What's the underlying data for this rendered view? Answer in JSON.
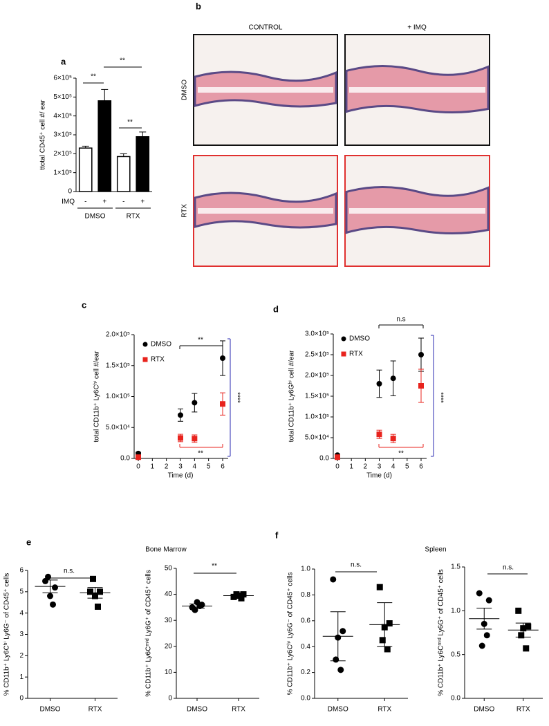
{
  "chart_data": [
    {
      "type": "bar",
      "panel": "a",
      "y_label": "ttotal CD45⁺ cell #/ ear",
      "x_label": "IMQ",
      "categories": [
        "-",
        "+",
        "-",
        "+"
      ],
      "group_labels": [
        "DMSO",
        "RTX"
      ],
      "values": [
        230000,
        480000,
        185000,
        290000
      ],
      "errors": [
        10000,
        60000,
        15000,
        25000
      ],
      "colors": [
        "#ffffff",
        "#000000",
        "#ffffff",
        "#000000"
      ],
      "ylim": [
        0,
        600000
      ],
      "yticks": [
        0,
        {
          "value": 100000,
          "label": "1×10⁵"
        },
        {
          "value": 200000,
          "label": "2×10⁵"
        },
        {
          "value": 300000,
          "label": "3×10⁵"
        },
        {
          "value": 400000,
          "label": "4×10⁵"
        },
        {
          "value": 500000,
          "label": "5×10⁵"
        },
        {
          "value": 600000,
          "label": "6×10⁵"
        }
      ],
      "annotations": [
        {
          "text": "**",
          "color": "#000000"
        },
        {
          "text": "**",
          "color": "#000000"
        },
        {
          "text": "**",
          "color": "#000000"
        }
      ]
    },
    {
      "type": "scatter",
      "panel": "c",
      "y_label": "total CD11b⁺ Ly6Cʰⁱ cell #/ear",
      "x_label": "Time (d)",
      "legend": "upper left",
      "x": [
        0,
        3,
        4,
        6
      ],
      "xlim": [
        0,
        6
      ],
      "xticks": [
        0,
        1,
        2,
        3,
        4,
        5,
        6
      ],
      "series": [
        {
          "name": "DMSO",
          "color": "#000000",
          "marker": "circle",
          "values": [
            8000,
            70000,
            90000,
            162000
          ],
          "errors": [
            2000,
            10000,
            15000,
            28000
          ]
        },
        {
          "name": "RTX",
          "color": "#e8231d",
          "marker": "square",
          "values": [
            2000,
            33000,
            32000,
            88000
          ],
          "errors": [
            1000,
            6000,
            6000,
            18000
          ]
        }
      ],
      "ylim": [
        0,
        200000
      ],
      "yticks": [
        {
          "value": 0,
          "label": "0.0"
        },
        {
          "value": 50000,
          "label": "5.0×10⁴"
        },
        {
          "value": 100000,
          "label": "1.0×10⁵"
        },
        {
          "value": 150000,
          "label": "1.5×10⁵"
        },
        {
          "value": 200000,
          "label": "2.0×10⁵"
        }
      ],
      "annotations": [
        {
          "text": "**",
          "color": "#000000"
        },
        {
          "text": "****",
          "color": "#2a2ab0"
        },
        {
          "text": "**",
          "color": "#e8231d"
        }
      ]
    },
    {
      "type": "scatter",
      "panel": "d",
      "y_label": "total CD11b⁺ Ly6Gʰⁱ cell #/ear",
      "x_label": "Time (d)",
      "legend": "upper left",
      "x": [
        0,
        3,
        4,
        6
      ],
      "xlim": [
        0,
        6
      ],
      "xticks": [
        0,
        1,
        2,
        3,
        4,
        5,
        6
      ],
      "series": [
        {
          "name": "DMSO",
          "color": "#000000",
          "marker": "circle",
          "values": [
            8000,
            180000,
            193000,
            250000
          ],
          "errors": [
            2000,
            33000,
            42000,
            40000
          ]
        },
        {
          "name": "RTX",
          "color": "#e8231d",
          "marker": "square",
          "values": [
            3000,
            58000,
            48000,
            175000
          ],
          "errors": [
            1000,
            10000,
            10000,
            40000
          ]
        }
      ],
      "ylim": [
        0,
        300000
      ],
      "yticks": [
        {
          "value": 0,
          "label": "0.0"
        },
        {
          "value": 50000,
          "label": "5.0×10⁴"
        },
        {
          "value": 100000,
          "label": "1.0×10⁵"
        },
        {
          "value": 150000,
          "label": "1.5×10⁵"
        },
        {
          "value": 200000,
          "label": "2.0×10⁵"
        },
        {
          "value": 250000,
          "label": "2.5×10⁵"
        },
        {
          "value": 300000,
          "label": "3.0×10⁵"
        }
      ],
      "annotations": [
        {
          "text": "n.s",
          "color": "#000000"
        },
        {
          "text": "****",
          "color": "#2a2ab0"
        },
        {
          "text": "**",
          "color": "#e8231d"
        }
      ]
    },
    {
      "type": "dot",
      "panel": "e",
      "title": "Bone Marrow",
      "y_label": "% CD11b⁺ Ly6Cʰⁱ Ly6G⁻ of CD45⁺ cells",
      "categories": [
        "DMSO",
        "RTX"
      ],
      "groups": [
        {
          "marker": "circle",
          "points": [
            5.5,
            5.2,
            4.8,
            5.7,
            4.4
          ],
          "mean": 5.25,
          "sem": 0.3
        },
        {
          "marker": "square",
          "points": [
            5.0,
            5.0,
            4.8,
            5.6,
            4.3
          ],
          "mean": 4.95,
          "sem": 0.25
        }
      ],
      "ylim": [
        0,
        6
      ],
      "yticks": [
        0,
        1,
        2,
        3,
        4,
        5,
        6
      ],
      "annotations": [
        {
          "text": "n.s.",
          "color": "#000000"
        }
      ]
    },
    {
      "type": "dot",
      "y_label": "% CD11b⁺ Ly6Cᵐⁱᵈ Ly6G⁺ of CD45⁺ cells",
      "categories": [
        "DMSO",
        "RTX"
      ],
      "groups": [
        {
          "marker": "circle",
          "points": [
            35,
            36,
            37,
            34,
            35.5
          ],
          "mean": 35.5,
          "sem": 0.8
        },
        {
          "marker": "square",
          "points": [
            39,
            40,
            39.5,
            40,
            38.5
          ],
          "mean": 39.5,
          "sem": 0.5
        }
      ],
      "ylim": [
        0,
        50
      ],
      "yticks": [
        0,
        10,
        20,
        30,
        40,
        50
      ],
      "annotations": [
        {
          "text": "**",
          "color": "#000000"
        }
      ]
    },
    {
      "type": "dot",
      "panel": "f",
      "title": "Spleen",
      "y_label": "% CD11b⁺ Ly6Cʰⁱ Ly6G⁻ of CD45⁺ cells",
      "categories": [
        "DMSO",
        "RTX"
      ],
      "groups": [
        {
          "marker": "circle",
          "points": [
            0.92,
            0.52,
            0.47,
            0.3,
            0.22
          ],
          "mean": 0.48,
          "sem": 0.19
        },
        {
          "marker": "square",
          "points": [
            0.86,
            0.58,
            0.55,
            0.45,
            0.38
          ],
          "mean": 0.57,
          "sem": 0.17
        }
      ],
      "ylim": [
        0,
        1
      ],
      "yticks": [
        {
          "value": 0,
          "label": "0.0"
        },
        {
          "value": 0.2,
          "label": "0.2"
        },
        {
          "value": 0.4,
          "label": "0.4"
        },
        {
          "value": 0.6,
          "label": "0.6"
        },
        {
          "value": 0.8,
          "label": "0.8"
        },
        {
          "value": 1,
          "label": "1.0"
        }
      ],
      "annotations": [
        {
          "text": "n.s.",
          "color": "#000000"
        }
      ]
    },
    {
      "type": "dot",
      "y_label": "% CD11b⁺ Ly6Cᵐⁱᵈ Ly6G⁺ of CD45⁺ cells",
      "categories": [
        "DMSO",
        "RTX"
      ],
      "groups": [
        {
          "marker": "circle",
          "points": [
            1.2,
            1.12,
            0.85,
            0.6,
            0.72
          ],
          "mean": 0.91,
          "sem": 0.12
        },
        {
          "marker": "square",
          "points": [
            1.0,
            0.82,
            0.8,
            0.72,
            0.57
          ],
          "mean": 0.78,
          "sem": 0.08
        }
      ],
      "ylim": [
        0,
        1.5
      ],
      "yticks": [
        {
          "value": 0,
          "label": "0.0"
        },
        0.5,
        {
          "value": 1,
          "label": "1.0"
        },
        1.5
      ],
      "annotations": [
        {
          "text": "n.s.",
          "color": "#000000"
        }
      ]
    }
  ],
  "histology": {
    "panel": "b",
    "columns": [
      "CONTROL",
      "+ IMQ"
    ],
    "rows": [
      "DMSO",
      "RTX"
    ],
    "row_colors": [
      "#111111",
      "#e0302f"
    ]
  }
}
